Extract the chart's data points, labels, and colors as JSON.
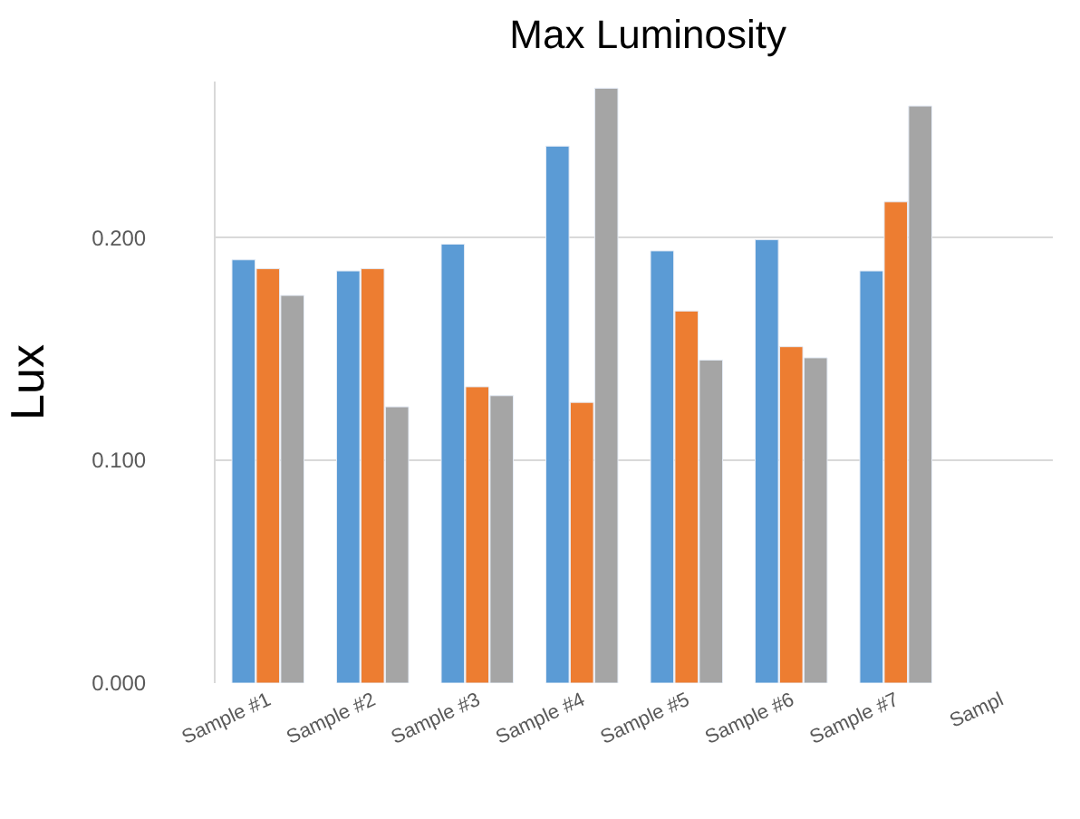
{
  "chart_data": {
    "type": "bar",
    "title": "Max Luminosity",
    "ylabel": "Lux",
    "categories": [
      "Sample #1",
      "Sample #2",
      "Sample #3",
      "Sample #4",
      "Sample #5",
      "Sample #6",
      "Sample #7",
      "Sampl"
    ],
    "series": [
      {
        "color": "#5b9bd5",
        "values": [
          0.19,
          0.185,
          0.197,
          0.241,
          0.194,
          0.199,
          0.185,
          null
        ]
      },
      {
        "color": "#ed7d31",
        "values": [
          0.186,
          0.186,
          0.133,
          0.126,
          0.167,
          0.151,
          0.216,
          null
        ]
      },
      {
        "color": "#a5a5a5",
        "values": [
          0.174,
          0.124,
          0.129,
          0.267,
          0.145,
          0.146,
          0.259,
          null
        ]
      }
    ],
    "ylim": [
      0,
      0.27
    ],
    "yticks": [
      {
        "value": 0,
        "label": "0.000"
      },
      {
        "value": 0.1,
        "label": "0.100"
      },
      {
        "value": 0.2,
        "label": "0.200"
      }
    ],
    "grid": "y"
  }
}
